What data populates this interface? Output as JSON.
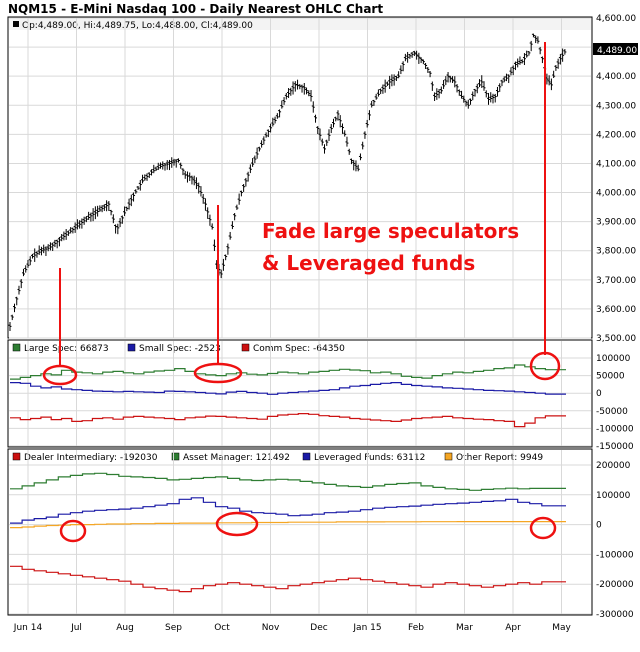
{
  "title": "NQM15 - E-Mini Nasdaq 100 - Daily Nearest OHLC Chart",
  "colors": {
    "price": "#000000",
    "large_spec": "#2e7d32",
    "small_spec": "#1a1aa6",
    "comm_spec": "#cc1111",
    "dealer": "#cc1111",
    "asset_manager": "#2e7d32",
    "leveraged": "#1a1aa6",
    "other": "#f5a623",
    "annotation": "#ee1111",
    "grid": "#d9d9d9",
    "frame": "#000000"
  },
  "chart_data": [
    {
      "type": "ohlc",
      "title": "NQM15 - E-Mini Nasdaq 100 - Daily Nearest OHLC Chart",
      "ohlc_label": "Op:4,489.00, Hi:4,489.75, Lo:4,488.00, Cl:4,489.00",
      "ylim": [
        3500,
        4600
      ],
      "yticks": [
        "4,600.00",
        "4,500.00",
        "4,400.00",
        "4,300.00",
        "4,200.00",
        "4,100.00",
        "4,000.00",
        "3,900.00",
        "3,800.00",
        "3,700.00",
        "3,600.00",
        "3,500.00"
      ],
      "last_price_label": "4,489.00",
      "x_labels": [
        "Jun 14",
        "Jul",
        "Aug",
        "Sep",
        "Oct",
        "Nov",
        "Dec",
        "Jan 15",
        "Feb",
        "Mar",
        "Apr",
        "May"
      ],
      "close_path": [
        [
          0,
          3540
        ],
        [
          5,
          3620
        ],
        [
          12,
          3720
        ],
        [
          20,
          3780
        ],
        [
          28,
          3800
        ],
        [
          35,
          3810
        ],
        [
          45,
          3840
        ],
        [
          55,
          3870
        ],
        [
          65,
          3900
        ],
        [
          72,
          3920
        ],
        [
          80,
          3940
        ],
        [
          88,
          3960
        ],
        [
          95,
          3870
        ],
        [
          102,
          3930
        ],
        [
          110,
          3990
        ],
        [
          118,
          4040
        ],
        [
          126,
          4070
        ],
        [
          134,
          4090
        ],
        [
          142,
          4100
        ],
        [
          150,
          4110
        ],
        [
          156,
          4060
        ],
        [
          162,
          4050
        ],
        [
          168,
          4020
        ],
        [
          174,
          3960
        ],
        [
          180,
          3880
        ],
        [
          184,
          3750
        ],
        [
          188,
          3720
        ],
        [
          194,
          3810
        ],
        [
          200,
          3920
        ],
        [
          206,
          4000
        ],
        [
          214,
          4080
        ],
        [
          222,
          4150
        ],
        [
          230,
          4210
        ],
        [
          238,
          4260
        ],
        [
          246,
          4330
        ],
        [
          254,
          4370
        ],
        [
          262,
          4360
        ],
        [
          268,
          4330
        ],
        [
          274,
          4220
        ],
        [
          280,
          4150
        ],
        [
          286,
          4220
        ],
        [
          292,
          4270
        ],
        [
          298,
          4200
        ],
        [
          304,
          4110
        ],
        [
          310,
          4080
        ],
        [
          316,
          4200
        ],
        [
          322,
          4300
        ],
        [
          330,
          4350
        ],
        [
          338,
          4380
        ],
        [
          346,
          4400
        ],
        [
          352,
          4460
        ],
        [
          360,
          4480
        ],
        [
          368,
          4450
        ],
        [
          374,
          4410
        ],
        [
          378,
          4330
        ],
        [
          384,
          4350
        ],
        [
          390,
          4400
        ],
        [
          396,
          4380
        ],
        [
          402,
          4330
        ],
        [
          408,
          4300
        ],
        [
          414,
          4350
        ],
        [
          420,
          4380
        ],
        [
          426,
          4320
        ],
        [
          432,
          4330
        ],
        [
          438,
          4380
        ],
        [
          444,
          4400
        ],
        [
          450,
          4440
        ],
        [
          456,
          4450
        ],
        [
          462,
          4480
        ],
        [
          466,
          4540
        ],
        [
          470,
          4520
        ],
        [
          474,
          4460
        ],
        [
          478,
          4390
        ],
        [
          482,
          4370
        ],
        [
          486,
          4430
        ],
        [
          490,
          4460
        ],
        [
          495,
          4489
        ]
      ]
    },
    {
      "type": "step-line",
      "legend": [
        {
          "label": "Large Spec: 66873",
          "color_key": "large_spec"
        },
        {
          "label": "Small Spec: -2523",
          "color_key": "small_spec"
        },
        {
          "label": "Comm Spec: -64350",
          "color_key": "comm_spec"
        }
      ],
      "ylim": [
        -150000,
        100000
      ],
      "yticks": [
        "100000",
        "50000",
        "0",
        "-50000",
        "-100000",
        "-150000"
      ],
      "series": [
        {
          "name": "Large Spec",
          "color_key": "large_spec",
          "values": [
            40000,
            45000,
            50000,
            55000,
            52000,
            65000,
            60000,
            58000,
            55000,
            60000,
            62000,
            58000,
            55000,
            60000,
            63000,
            65000,
            70000,
            62000,
            55000,
            52000,
            50000,
            55000,
            58000,
            54000,
            52000,
            56000,
            60000,
            58000,
            55000,
            60000,
            62000,
            65000,
            68000,
            66000,
            64000,
            58000,
            60000,
            55000,
            48000,
            45000,
            43000,
            50000,
            55000,
            60000,
            58000,
            62000,
            65000,
            70000,
            72000,
            80000,
            75000,
            70000,
            66873,
            66873
          ]
        },
        {
          "name": "Small Spec",
          "color_key": "small_spec",
          "values": [
            30000,
            28000,
            20000,
            15000,
            18000,
            12000,
            10000,
            8000,
            6000,
            5000,
            4000,
            5000,
            4000,
            3000,
            2000,
            6000,
            5000,
            4000,
            2000,
            0,
            -2000,
            3000,
            5000,
            2000,
            0,
            -3000,
            0,
            2000,
            4000,
            6000,
            8000,
            10000,
            15000,
            20000,
            22000,
            25000,
            28000,
            30000,
            25000,
            22000,
            20000,
            18000,
            15000,
            14000,
            12000,
            10000,
            8000,
            7000,
            6000,
            4000,
            2000,
            0,
            -2523,
            -2523
          ]
        },
        {
          "name": "Comm Spec",
          "color_key": "comm_spec",
          "values": [
            -70000,
            -75000,
            -72000,
            -68000,
            -75000,
            -72000,
            -80000,
            -78000,
            -72000,
            -70000,
            -74000,
            -68000,
            -66000,
            -68000,
            -70000,
            -72000,
            -75000,
            -70000,
            -68000,
            -65000,
            -66000,
            -68000,
            -70000,
            -72000,
            -74000,
            -66000,
            -62000,
            -60000,
            -58000,
            -60000,
            -64000,
            -66000,
            -68000,
            -72000,
            -74000,
            -76000,
            -78000,
            -80000,
            -76000,
            -72000,
            -70000,
            -68000,
            -66000,
            -70000,
            -72000,
            -74000,
            -75000,
            -78000,
            -80000,
            -95000,
            -85000,
            -70000,
            -64350,
            -64350
          ]
        }
      ],
      "annotation_circles": [
        60,
        218,
        545
      ]
    },
    {
      "type": "step-line",
      "legend": [
        {
          "label": "Dealer Intermediary: -192030",
          "color_key": "dealer"
        },
        {
          "label": "Asset Manager: 121492",
          "color_key": "asset_manager"
        },
        {
          "label": "Leveraged Funds: 63112",
          "color_key": "leveraged"
        },
        {
          "label": "Other Report: 9949",
          "color_key": "other"
        }
      ],
      "ylim": [
        -300000,
        200000
      ],
      "yticks": [
        "200000",
        "100000",
        "0",
        "-100000",
        "-200000",
        "-300000"
      ],
      "series": [
        {
          "name": "Dealer Intermediary",
          "color_key": "dealer",
          "values": [
            -140000,
            -150000,
            -155000,
            -160000,
            -165000,
            -170000,
            -175000,
            -180000,
            -185000,
            -190000,
            -200000,
            -210000,
            -215000,
            -220000,
            -225000,
            -215000,
            -205000,
            -200000,
            -195000,
            -200000,
            -205000,
            -210000,
            -215000,
            -205000,
            -200000,
            -195000,
            -190000,
            -185000,
            -180000,
            -185000,
            -190000,
            -195000,
            -200000,
            -205000,
            -210000,
            -200000,
            -195000,
            -200000,
            -205000,
            -210000,
            -205000,
            -200000,
            -195000,
            -200000,
            -192030,
            -192030
          ]
        },
        {
          "name": "Asset Manager",
          "color_key": "asset_manager",
          "values": [
            120000,
            130000,
            140000,
            150000,
            160000,
            165000,
            170000,
            172000,
            168000,
            162000,
            160000,
            158000,
            155000,
            150000,
            152000,
            155000,
            158000,
            160000,
            155000,
            150000,
            148000,
            150000,
            152000,
            150000,
            145000,
            140000,
            135000,
            130000,
            128000,
            125000,
            130000,
            135000,
            138000,
            140000,
            130000,
            125000,
            120000,
            118000,
            115000,
            118000,
            120000,
            122000,
            120000,
            121492,
            121492,
            121492
          ]
        },
        {
          "name": "Leveraged Funds",
          "color_key": "leveraged",
          "values": [
            5000,
            15000,
            20000,
            25000,
            35000,
            40000,
            45000,
            48000,
            50000,
            52000,
            55000,
            60000,
            65000,
            70000,
            85000,
            90000,
            75000,
            60000,
            55000,
            45000,
            40000,
            38000,
            35000,
            30000,
            32000,
            35000,
            40000,
            42000,
            45000,
            50000,
            55000,
            58000,
            60000,
            62000,
            65000,
            68000,
            70000,
            72000,
            75000,
            78000,
            80000,
            85000,
            75000,
            70000,
            63112,
            63112
          ]
        },
        {
          "name": "Other Report",
          "color_key": "other",
          "values": [
            -10000,
            -8000,
            -5000,
            -3000,
            -2000,
            0,
            0,
            1000,
            2000,
            2000,
            3000,
            3000,
            4000,
            4000,
            5000,
            5000,
            5000,
            6000,
            6000,
            6000,
            7000,
            7000,
            7000,
            8000,
            8000,
            8000,
            8000,
            9000,
            9000,
            9000,
            9000,
            9500,
            9500,
            9500,
            9800,
            9800,
            9800,
            9900,
            9900,
            9949,
            9949,
            9949,
            9949,
            9949,
            9949,
            9949
          ]
        }
      ],
      "annotation_circles": [
        73,
        237,
        543
      ]
    }
  ],
  "annotation": {
    "line1": "Fade large speculators",
    "line2": "& Leveraged funds"
  }
}
